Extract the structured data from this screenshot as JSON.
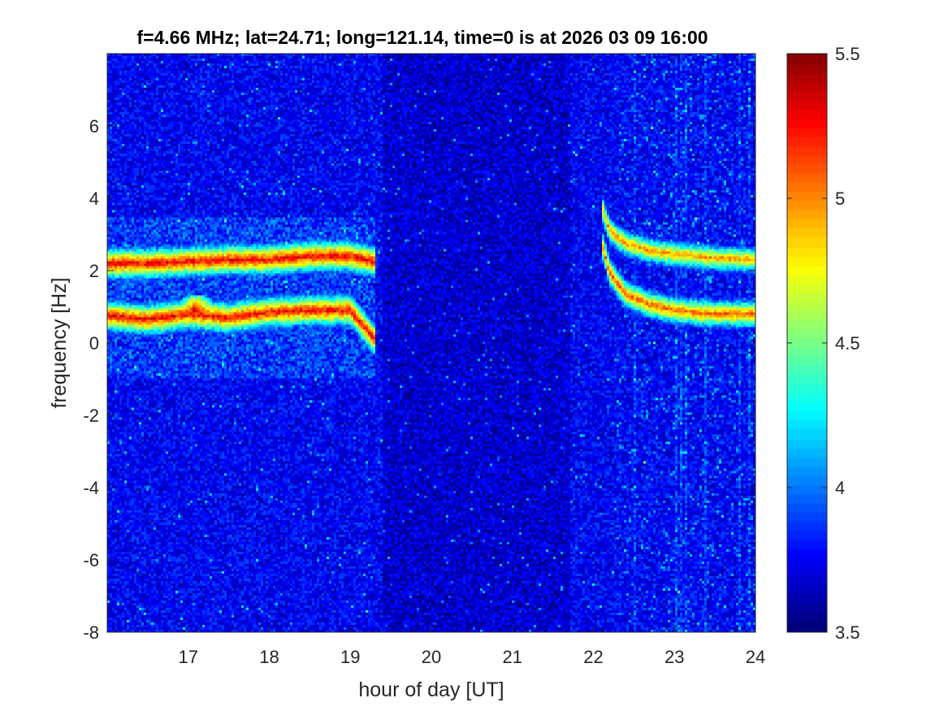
{
  "chart_data": {
    "type": "heatmap",
    "title": "f=4.66 MHz;  lat=24.71; long=121.14, time=0 is at 2026 03 09 16:00",
    "xlabel": "hour of day [UT]",
    "ylabel": "frequency [Hz]",
    "xlim": [
      16,
      24
    ],
    "ylim": [
      -8,
      8
    ],
    "xticks": [
      "17",
      "18",
      "19",
      "20",
      "21",
      "22",
      "23",
      "24"
    ],
    "yticks": [
      "-8",
      "-6",
      "-4",
      "-2",
      "0",
      "2",
      "4",
      "6"
    ],
    "colorbar": {
      "colormap": "jet",
      "clim": [
        3.5,
        5.5
      ],
      "ticks": [
        "3.5",
        "4",
        "4.5",
        "5",
        "5.5"
      ]
    },
    "background_level": 3.75,
    "features": [
      {
        "kind": "trace",
        "x": [
          16.0,
          16.5,
          17.0,
          17.5,
          18.0,
          18.5,
          19.0,
          19.3
        ],
        "y": [
          2.2,
          2.2,
          2.25,
          2.3,
          2.3,
          2.4,
          2.4,
          2.25
        ],
        "level": 5.3
      },
      {
        "kind": "trace",
        "x": [
          16.0,
          16.5,
          17.0,
          17.5,
          18.0,
          18.5,
          19.0,
          19.3
        ],
        "y": [
          0.75,
          0.65,
          0.8,
          0.7,
          0.85,
          0.9,
          0.9,
          0.1
        ],
        "level": 5.3
      },
      {
        "kind": "trace",
        "x": [
          22.1,
          22.2,
          22.4,
          22.7,
          23.0,
          23.5,
          24.0
        ],
        "y": [
          3.8,
          3.1,
          2.75,
          2.55,
          2.45,
          2.35,
          2.3
        ],
        "level": 5.0
      },
      {
        "kind": "trace",
        "x": [
          22.1,
          22.2,
          22.4,
          22.7,
          23.0,
          23.5,
          24.0
        ],
        "y": [
          2.8,
          1.95,
          1.35,
          1.05,
          0.9,
          0.8,
          0.8
        ],
        "level": 5.1
      },
      {
        "kind": "blob",
        "x": 17.1,
        "y": 0.9,
        "level": 5.4
      }
    ]
  }
}
